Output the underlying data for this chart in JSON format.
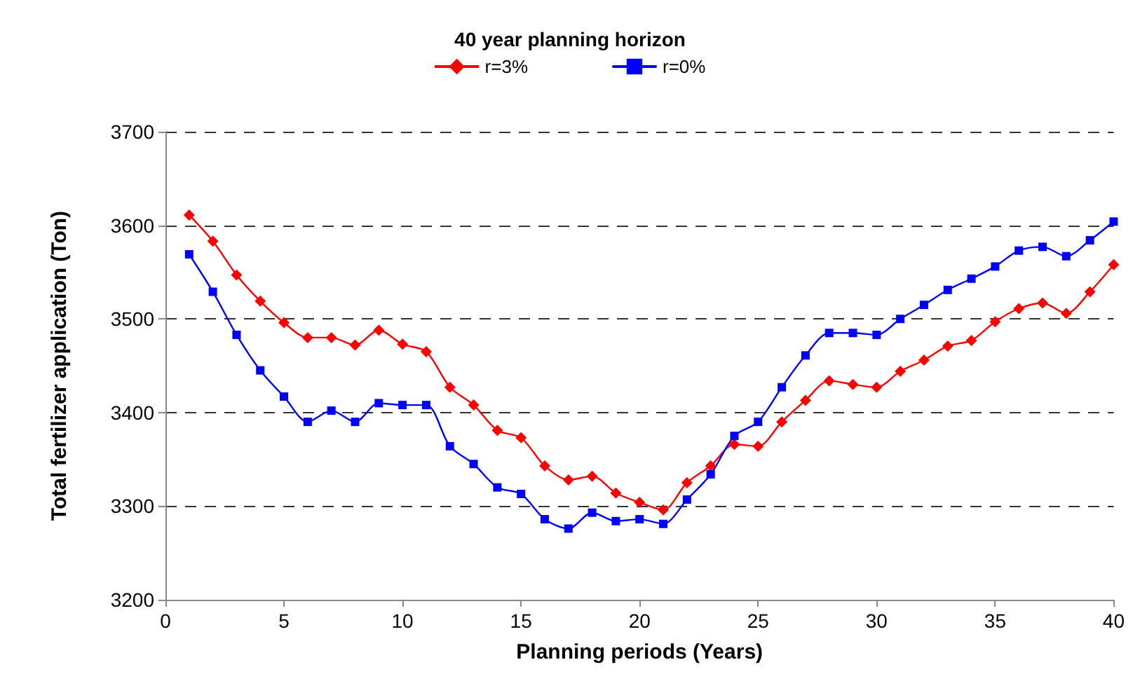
{
  "chart_data": {
    "type": "line",
    "title": "40 year planning horizon",
    "xlabel": "Planning periods (Years)",
    "ylabel": "Total fertilizer application (Ton)",
    "x": [
      1,
      2,
      3,
      4,
      5,
      6,
      7,
      8,
      9,
      10,
      11,
      12,
      13,
      14,
      15,
      16,
      17,
      18,
      19,
      20,
      21,
      22,
      23,
      24,
      25,
      26,
      27,
      28,
      29,
      30,
      31,
      32,
      33,
      34,
      35,
      36,
      37,
      38,
      39,
      40
    ],
    "series": [
      {
        "name": "r=3%",
        "color": "#ff0000",
        "marker": "diamond",
        "values": [
          3611,
          3583,
          3547,
          3519,
          3496,
          3480,
          3480,
          3472,
          3488,
          3473,
          3465,
          3427,
          3408,
          3381,
          3373,
          3343,
          3328,
          3332,
          3314,
          3304,
          3296,
          3325,
          3343,
          3366,
          3364,
          3390,
          3413,
          3434,
          3430,
          3427,
          3444,
          3456,
          3471,
          3477,
          3497,
          3511,
          3517,
          3506,
          3529,
          3558
        ]
      },
      {
        "name": "r=0%",
        "color": "#0000ff",
        "marker": "square",
        "values": [
          3569,
          3529,
          3483,
          3445,
          3417,
          3390,
          3402,
          3390,
          3410,
          3408,
          3408,
          3364,
          3345,
          3320,
          3313,
          3286,
          3276,
          3293,
          3284,
          3286,
          3281,
          3307,
          3334,
          3375,
          3390,
          3427,
          3461,
          3485,
          3485,
          3483,
          3500,
          3515,
          3531,
          3543,
          3556,
          3573,
          3577,
          3567,
          3584,
          3604
        ]
      }
    ],
    "xlim": [
      0,
      40
    ],
    "xticks": [
      0,
      5,
      10,
      15,
      20,
      25,
      30,
      35,
      40
    ],
    "ylim": [
      3200,
      3700
    ],
    "yticks": [
      3200,
      3300,
      3400,
      3500,
      3600,
      3700
    ],
    "grid": "y",
    "legend": "top",
    "line_style": "solid"
  }
}
